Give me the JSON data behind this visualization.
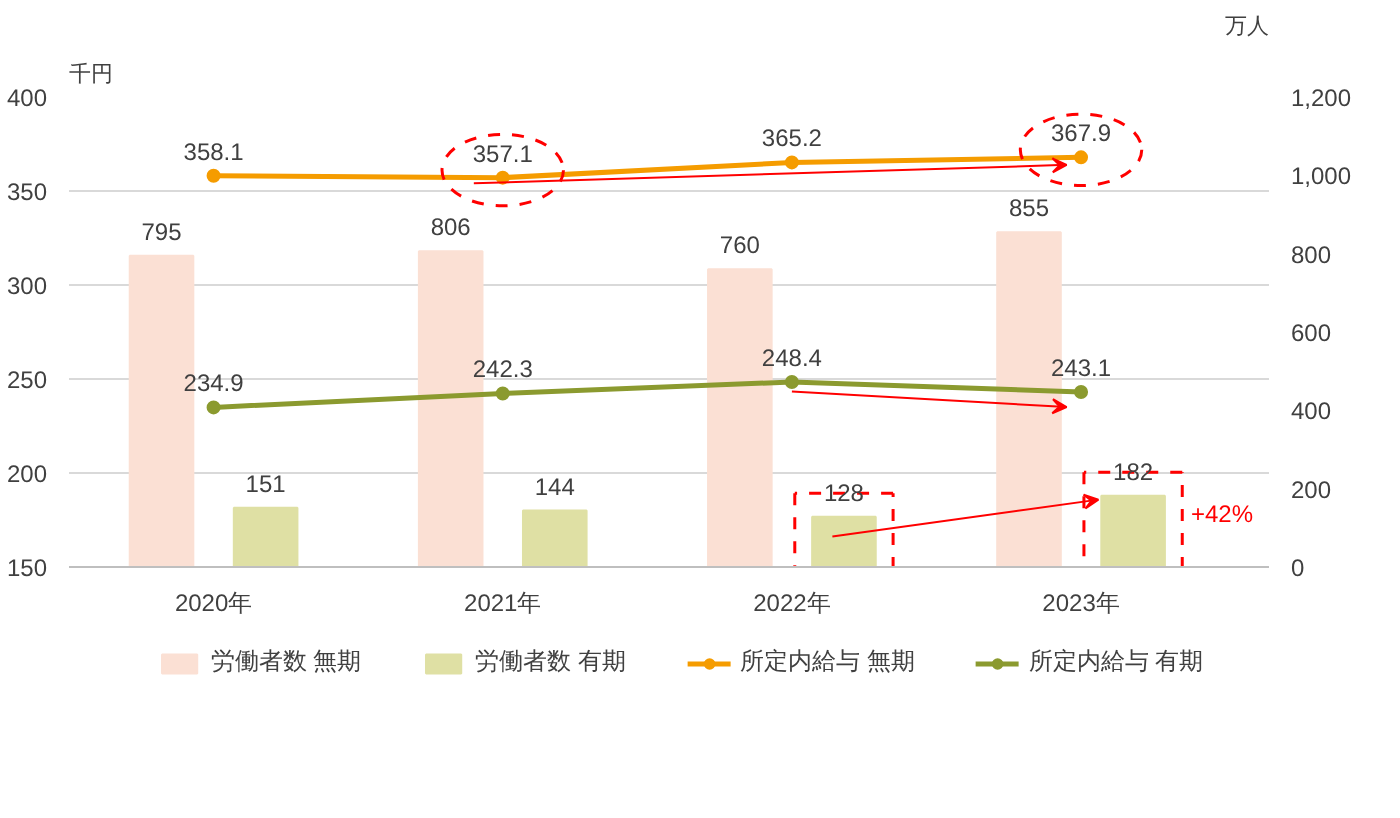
{
  "chart_data": {
    "type": "bar",
    "categories": [
      "2020年",
      "2021年",
      "2022年",
      "2023年"
    ],
    "ylabel": "千円",
    "y2label": "万人",
    "series": [
      {
        "name": "労働者数 無期",
        "axis": "y2",
        "color": "#fbe0d4",
        "values": [
          795,
          806,
          760,
          855
        ]
      },
      {
        "name": "労働者数 有期",
        "axis": "y2",
        "color": "#dfe0a4",
        "values": [
          151,
          144,
          128,
          182
        ]
      },
      {
        "name": "所定内給与 無期",
        "type": "line",
        "axis": "y",
        "color": "#f59c00",
        "values": [
          358.1,
          357.1,
          365.2,
          367.9
        ]
      },
      {
        "name": "所定内給与 有期",
        "type": "line",
        "axis": "y",
        "color": "#8b9a2f",
        "values": [
          234.9,
          242.3,
          248.4,
          243.1
        ]
      }
    ],
    "ylim": [
      150,
      400
    ],
    "yticks": [
      150,
      200,
      250,
      300,
      350,
      400
    ],
    "y2lim": [
      0,
      1200
    ],
    "y2ticks": [
      0,
      200,
      400,
      600,
      800,
      {
        "value": 1000,
        "label": "1,000"
      },
      {
        "value": 1200,
        "label": "1,200"
      }
    ],
    "annotations": [
      "+42%"
    ],
    "data_labels": true,
    "grid": "y",
    "legend": "bottom",
    "marker": "circle",
    "line_style": "solid"
  }
}
